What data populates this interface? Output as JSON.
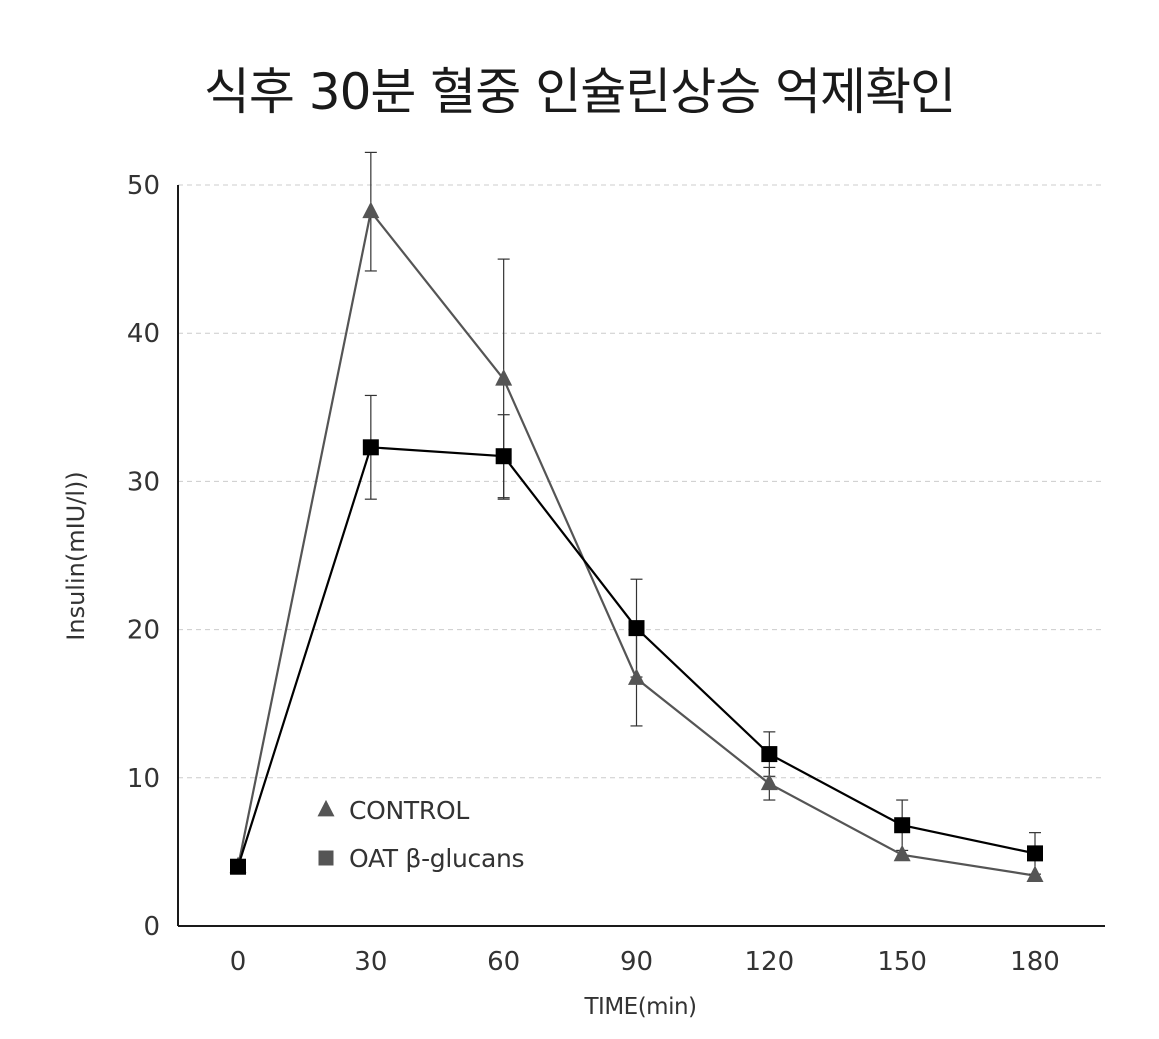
{
  "chart_data": {
    "type": "line",
    "title": "식후 30분 혈중 인슐린상승 억제확인",
    "xlabel": "TIME(min)",
    "ylabel": "Insulin(mIU/l))",
    "x": [
      0,
      30,
      60,
      90,
      120,
      150,
      180
    ],
    "x_tick_labels": [
      "0",
      "30",
      "60",
      "90",
      "120",
      "150",
      "180"
    ],
    "y_ticks": [
      0,
      10,
      20,
      30,
      40,
      50
    ],
    "y_tick_labels": [
      "0",
      "10",
      "20",
      "30",
      "40",
      "50"
    ],
    "ylim": [
      0,
      50
    ],
    "grid": "horizontal-dashed",
    "legend_position": "lower-left",
    "series": [
      {
        "name": "CONTROL",
        "marker": "triangle",
        "color": "#555555",
        "values": [
          4.0,
          48.2,
          36.9,
          16.7,
          9.6,
          4.8,
          3.4
        ],
        "err": [
          0,
          4.0,
          8.1,
          3.2,
          1.1,
          0,
          0
        ]
      },
      {
        "name": "OAT β-glucans",
        "marker": "square",
        "color": "#000000",
        "values": [
          4.0,
          32.3,
          31.7,
          20.1,
          11.6,
          6.8,
          4.9
        ],
        "err": [
          0,
          3.5,
          2.8,
          3.3,
          1.5,
          1.7,
          1.4
        ]
      }
    ]
  }
}
